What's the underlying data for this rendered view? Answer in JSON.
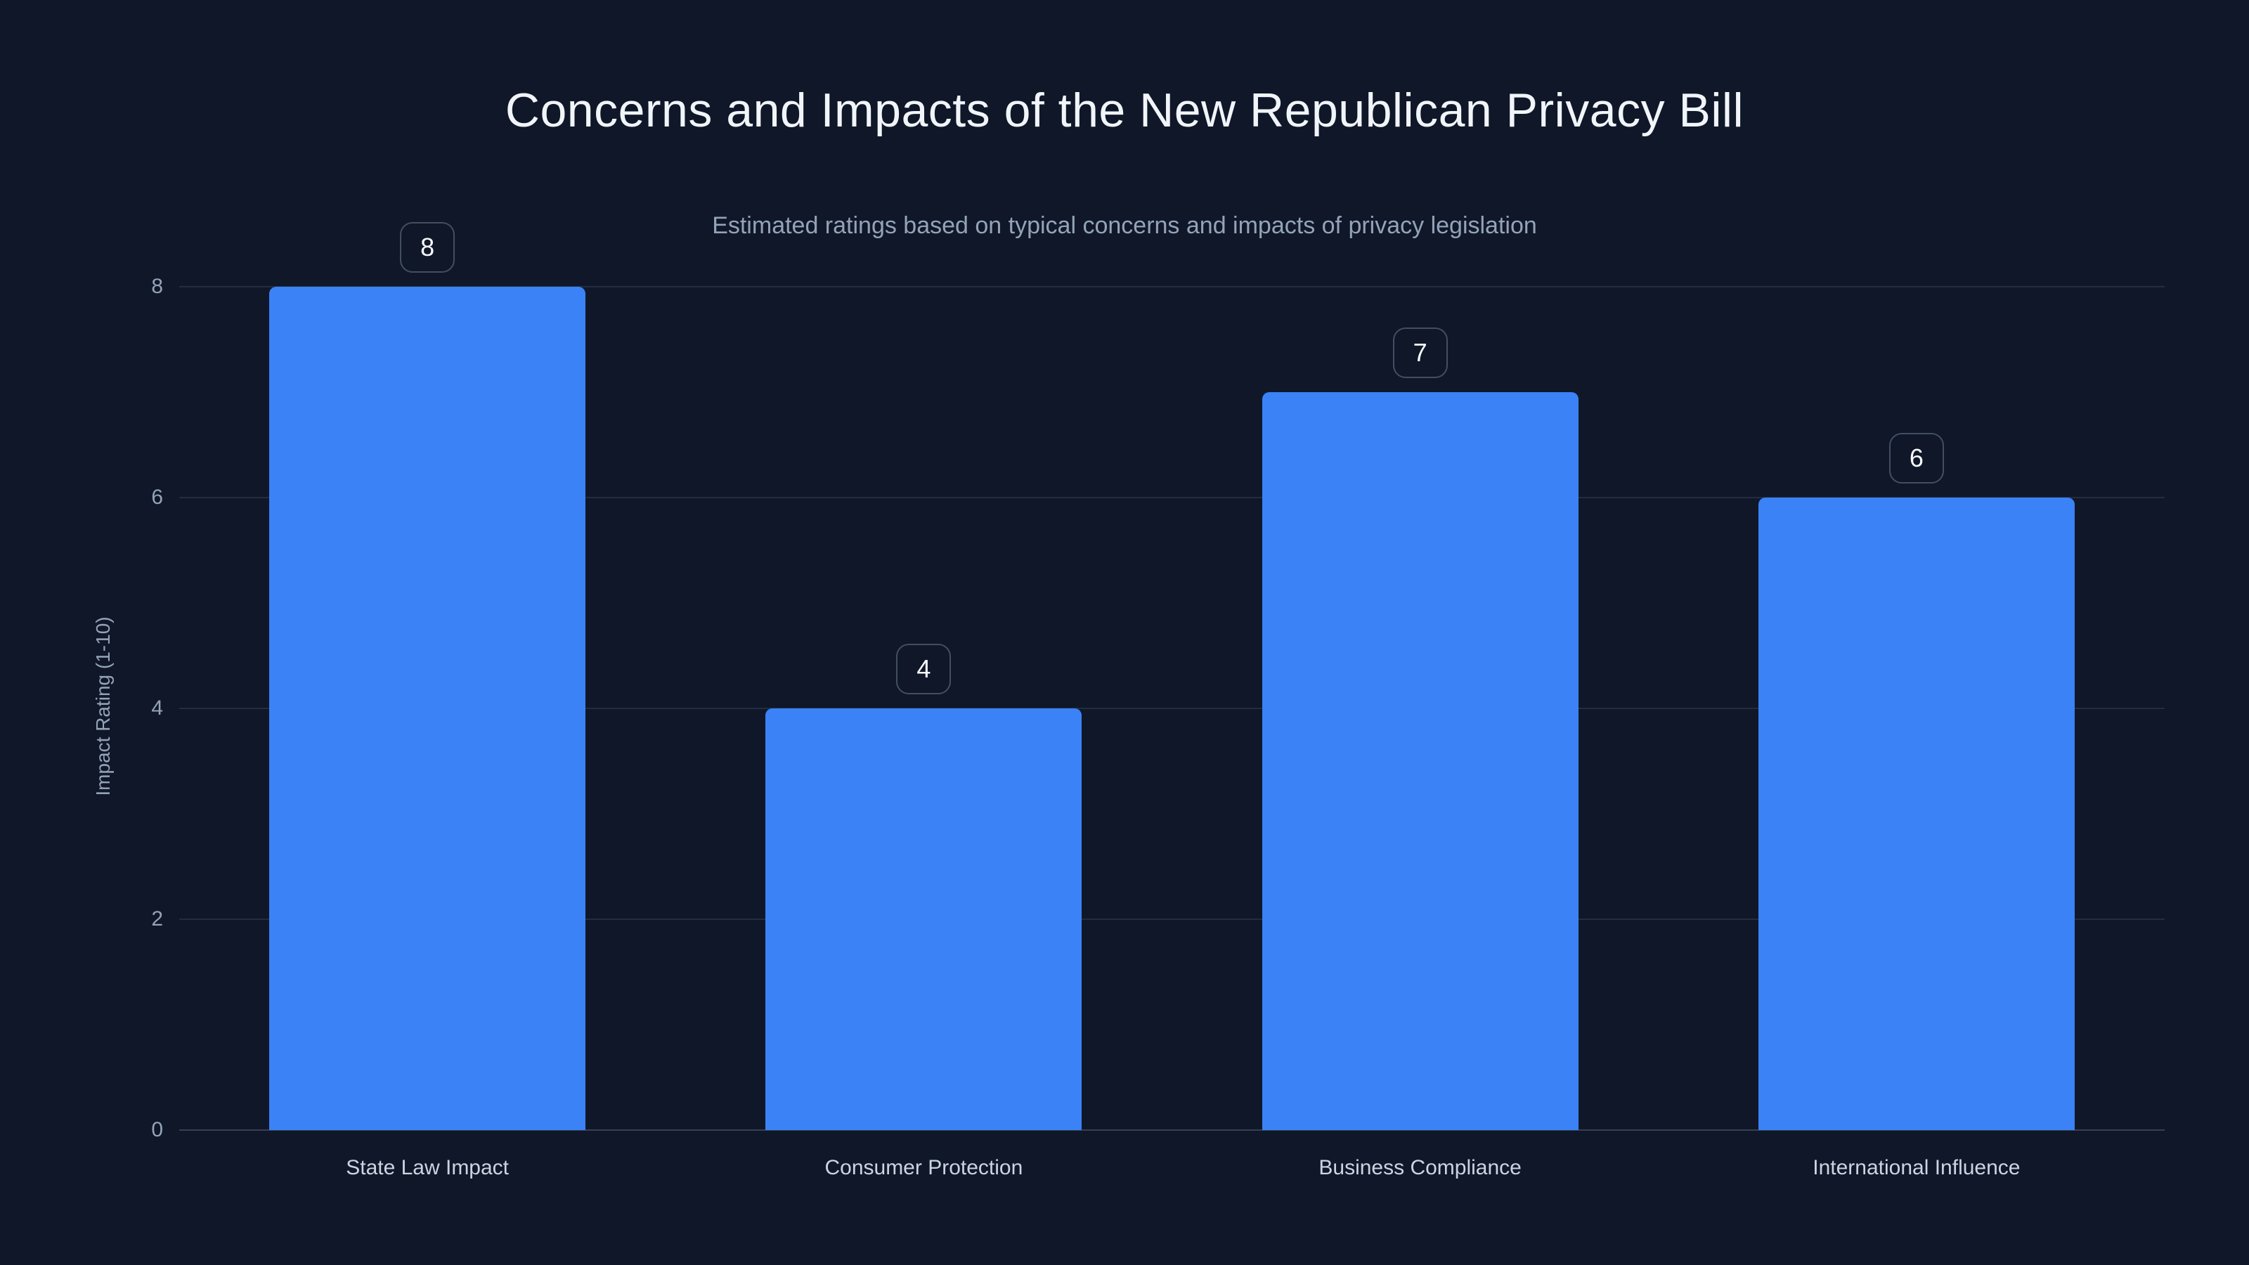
{
  "page": {
    "background_color": "#0f1729",
    "title": "Concerns and Impacts of the New Republican Privacy Bill",
    "subtitle": "Estimated ratings based on typical concerns and impacts of privacy legislation"
  },
  "chart_data": {
    "type": "bar",
    "title": "Concerns and Impacts of the New Republican Privacy Bill",
    "subtitle": "Estimated ratings based on typical concerns and impacts of privacy legislation",
    "categories": [
      "State Law Impact",
      "Consumer Protection",
      "Business Compliance",
      "International Influence"
    ],
    "values": [
      8,
      4,
      7,
      6
    ],
    "value_labels": [
      "8",
      "4",
      "7",
      "6"
    ],
    "xlabel": "",
    "ylabel": "Impact Rating (1-10)",
    "yticks": [
      0,
      2,
      4,
      6,
      8
    ],
    "ylim": [
      0,
      8
    ],
    "grid": true,
    "legend": false,
    "bar_color": "#3b82f6",
    "background_color": "#0f1729",
    "title_color": "#f1f5f9",
    "subtitle_color": "#94a3b8",
    "tick_color": "#94a3b8",
    "category_color": "#cbd5e1",
    "gridline_color": "rgba(148,163,184,0.16)"
  }
}
